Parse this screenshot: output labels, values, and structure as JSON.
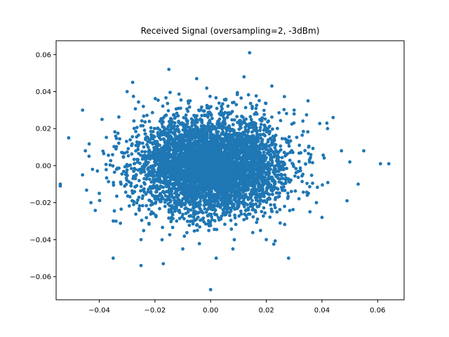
{
  "chart_data": {
    "type": "scatter",
    "title": "Received Signal (oversampling=2, -3dBm)",
    "xlabel": "",
    "ylabel": "",
    "xlim": [
      -0.0555,
      0.0695
    ],
    "ylim": [
      -0.0725,
      0.0675
    ],
    "x_ticks": [
      -0.04,
      -0.02,
      0.0,
      0.02,
      0.04,
      0.06
    ],
    "x_tick_labels": [
      "−0.04",
      "−0.02",
      "0.00",
      "0.02",
      "0.04",
      "0.06"
    ],
    "y_ticks": [
      -0.06,
      -0.04,
      -0.02,
      0.0,
      0.02,
      0.04,
      0.06
    ],
    "y_tick_labels": [
      "−0.06",
      "−0.04",
      "−0.02",
      "0.00",
      "0.02",
      "0.04",
      "0.06"
    ],
    "grid": false,
    "color": "#1f77b4",
    "distribution": {
      "shape": "bivariate normal cloud",
      "center": [
        0.0,
        0.0
      ],
      "std": [
        0.013,
        0.013
      ],
      "count": 5000
    },
    "points": [
      [
        0.014,
        0.061
      ],
      [
        0.0,
        -0.067
      ],
      [
        -0.054,
        -0.011
      ],
      [
        -0.054,
        -0.01
      ],
      [
        0.064,
        0.001
      ],
      [
        0.061,
        0.001
      ],
      [
        -0.051,
        0.015
      ],
      [
        -0.046,
        0.03
      ],
      [
        -0.025,
        -0.054
      ],
      [
        -0.035,
        -0.05
      ],
      [
        -0.015,
        0.052
      ],
      [
        0.002,
        -0.05
      ],
      [
        0.028,
        -0.05
      ],
      [
        0.055,
        0.008
      ],
      [
        0.053,
        -0.01
      ],
      [
        0.049,
        -0.019
      ],
      [
        0.047,
        0.008
      ],
      [
        -0.043,
        -0.02
      ],
      [
        -0.017,
        -0.053
      ],
      [
        0.012,
        0.048
      ],
      [
        0.022,
        0.043
      ],
      [
        -0.005,
        0.047
      ],
      [
        -0.028,
        0.045
      ],
      [
        0.035,
        0.035
      ],
      [
        -0.03,
        0.04
      ],
      [
        0.042,
        0.02
      ],
      [
        0.044,
        0.026
      ],
      [
        -0.039,
        0.025
      ],
      [
        -0.04,
        -0.015
      ],
      [
        0.04,
        -0.028
      ],
      [
        0.038,
        -0.02
      ],
      [
        -0.034,
        -0.03
      ],
      [
        0.03,
        0.03
      ],
      [
        -0.025,
        -0.04
      ],
      [
        0.02,
        -0.04
      ],
      [
        -0.01,
        -0.045
      ],
      [
        0.008,
        -0.045
      ],
      [
        -0.045,
        0.008
      ],
      [
        -0.046,
        -0.005
      ],
      [
        0.05,
        0.002
      ]
    ]
  }
}
